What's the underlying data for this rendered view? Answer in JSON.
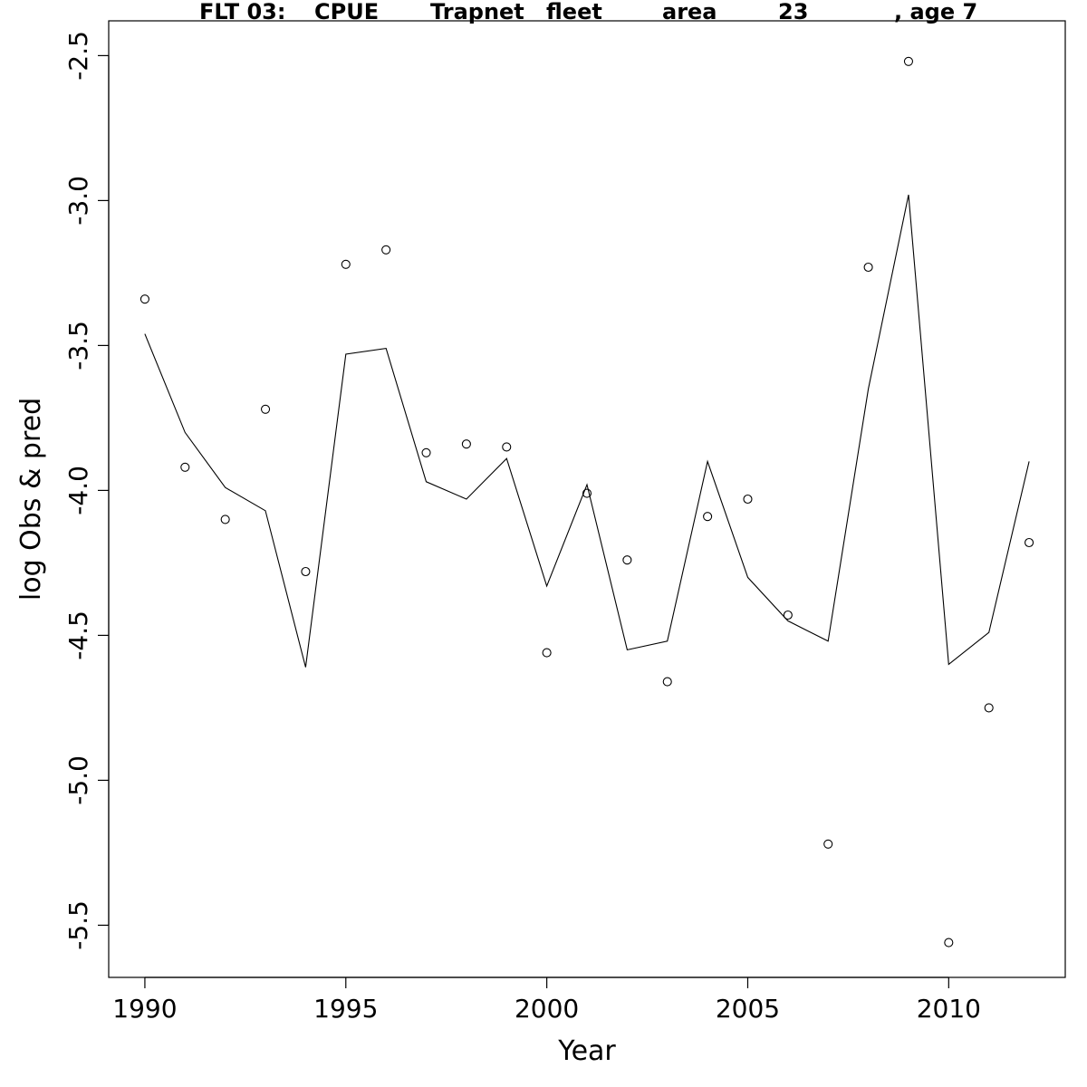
{
  "chart_data": {
    "type": "line",
    "title_parts": [
      "FLT 03:",
      "CPUE",
      "Trapnet",
      "fleet",
      "area",
      "23",
      ", age 7"
    ],
    "xlabel": "Year",
    "ylabel": "log Obs & pred",
    "xlim": [
      1989.1,
      2012.9
    ],
    "ylim": [
      -5.68,
      -2.38
    ],
    "x_ticks": [
      1990,
      1995,
      2000,
      2005,
      2010
    ],
    "y_ticks": [
      -5.5,
      -5.0,
      -4.5,
      -4.0,
      -3.5,
      -3.0,
      -2.5
    ],
    "y_tick_labels": [
      "-5.5",
      "-5.0",
      "-4.5",
      "-4.0",
      "-3.5",
      "-3.0",
      "-2.5"
    ],
    "grid": false,
    "series": [
      {
        "style": "points",
        "x": [
          1990,
          1991,
          1992,
          1993,
          1994,
          1995,
          1996,
          1997,
          1998,
          1999,
          2000,
          2001,
          2002,
          2003,
          2004,
          2005,
          2006,
          2007,
          2008,
          2009,
          2010,
          2011,
          2012
        ],
        "y": [
          -3.34,
          -3.92,
          -4.1,
          -3.72,
          -4.28,
          -3.22,
          -3.17,
          -3.87,
          -3.84,
          -3.85,
          -4.56,
          -4.01,
          -4.24,
          -4.66,
          -4.09,
          -4.03,
          -4.43,
          -5.22,
          -3.23,
          -2.52,
          -5.56,
          -4.75,
          -4.18
        ]
      },
      {
        "style": "line",
        "x": [
          1990,
          1991,
          1992,
          1993,
          1994,
          1995,
          1996,
          1997,
          1998,
          1999,
          2000,
          2001,
          2002,
          2003,
          2004,
          2005,
          2006,
          2007,
          2008,
          2009,
          2010,
          2011,
          2012
        ],
        "y": [
          -3.46,
          -3.8,
          -3.99,
          -4.07,
          -4.61,
          -3.53,
          -3.51,
          -3.97,
          -4.03,
          -3.89,
          -4.33,
          -3.98,
          -4.55,
          -4.52,
          -3.9,
          -4.3,
          -4.45,
          -4.52,
          -3.65,
          -2.98,
          -4.6,
          -4.49,
          -3.9
        ]
      }
    ]
  }
}
